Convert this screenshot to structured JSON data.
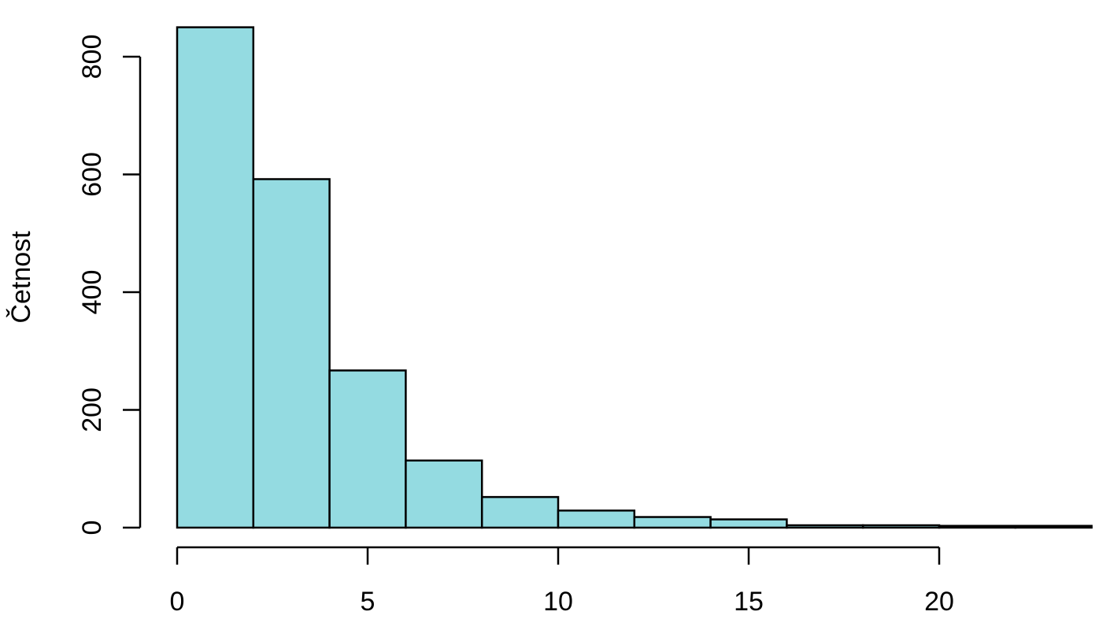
{
  "chart_data": {
    "type": "bar",
    "title": "",
    "xlabel": "",
    "ylabel": "Četnost",
    "bins": [
      {
        "from": 0,
        "to": 2,
        "count": 850
      },
      {
        "from": 2,
        "to": 4,
        "count": 592
      },
      {
        "from": 4,
        "to": 6,
        "count": 267
      },
      {
        "from": 6,
        "to": 8,
        "count": 114
      },
      {
        "from": 8,
        "to": 10,
        "count": 52
      },
      {
        "from": 10,
        "to": 12,
        "count": 29
      },
      {
        "from": 12,
        "to": 14,
        "count": 18
      },
      {
        "from": 14,
        "to": 16,
        "count": 14
      },
      {
        "from": 16,
        "to": 18,
        "count": 4
      },
      {
        "from": 18,
        "to": 20,
        "count": 4
      },
      {
        "from": 20,
        "to": 22,
        "count": 3
      },
      {
        "from": 22,
        "to": 24,
        "count": 3
      }
    ],
    "xlim": [
      0,
      24
    ],
    "ylim": [
      0,
      850
    ],
    "x_ticks": [
      0,
      5,
      10,
      15,
      20
    ],
    "y_ticks": [
      0,
      200,
      400,
      600,
      800
    ],
    "bar_color": "#94dbe1",
    "edge_color": "#000000",
    "grid": false,
    "legend": "none"
  }
}
